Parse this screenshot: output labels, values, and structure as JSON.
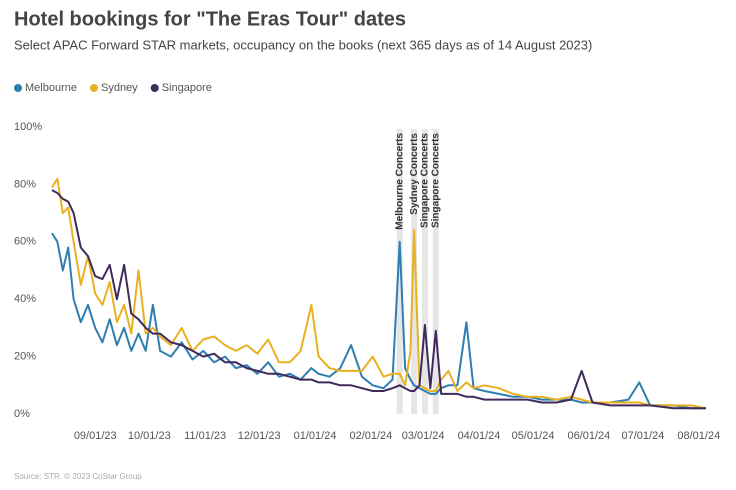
{
  "chart_data": {
    "type": "line",
    "title": "Hotel bookings for \"The Eras Tour\" dates",
    "subtitle": "Select APAC Forward STAR markets, occupancy on the books (next 365 days as of 14 August 2023)",
    "source": "Source: STR. © 2023 CoStar Group",
    "legend": "top-left",
    "grid": false,
    "x": [
      "08/08/23",
      "08/11/23",
      "08/14/23",
      "08/17/23",
      "08/20/23",
      "08/24/23",
      "08/28/23",
      "09/01/23",
      "09/05/23",
      "09/09/23",
      "09/13/23",
      "09/17/23",
      "09/21/23",
      "09/25/23",
      "09/29/23",
      "10/03/23",
      "10/07/23",
      "10/13/23",
      "10/19/23",
      "10/25/23",
      "10/31/23",
      "11/06/23",
      "11/12/23",
      "11/18/23",
      "11/24/23",
      "11/30/23",
      "12/06/23",
      "12/12/23",
      "12/18/23",
      "12/24/23",
      "12/30/23",
      "01/03/24",
      "01/09/24",
      "01/15/24",
      "01/21/24",
      "01/27/24",
      "02/02/24",
      "02/08/24",
      "02/13/24",
      "02/17/24",
      "02/20/24",
      "02/23/24",
      "02/25/24",
      "02/28/24",
      "03/02/24",
      "03/05/24",
      "03/08/24",
      "03/11/24",
      "03/15/24",
      "03/20/24",
      "03/25/24",
      "03/29/24",
      "04/04/24",
      "04/12/24",
      "04/20/24",
      "04/28/24",
      "05/06/24",
      "05/14/24",
      "05/22/24",
      "05/28/24",
      "06/03/24",
      "06/13/24",
      "06/23/24",
      "06/29/24",
      "07/05/24",
      "07/18/24",
      "07/28/24",
      "08/05/24"
    ],
    "series": [
      {
        "name": "Melbourne",
        "color": "#2e7fb0",
        "values": [
          63,
          60,
          50,
          58,
          40,
          32,
          38,
          30,
          25,
          33,
          24,
          30,
          22,
          28,
          22,
          38,
          22,
          20,
          25,
          19,
          22,
          18,
          20,
          16,
          17,
          14,
          18,
          13,
          14,
          12,
          16,
          14,
          13,
          16,
          24,
          13,
          10,
          9,
          12,
          60,
          16,
          12,
          10,
          9,
          8,
          7,
          7,
          9,
          10,
          10,
          32,
          9,
          8,
          7,
          6,
          6,
          5,
          5,
          5,
          4,
          4,
          4,
          5,
          11,
          3,
          3,
          2,
          2
        ]
      },
      {
        "name": "Sydney",
        "color": "#e8b120",
        "values": [
          79,
          82,
          70,
          72,
          60,
          45,
          55,
          42,
          38,
          46,
          32,
          38,
          28,
          50,
          28,
          30,
          27,
          24,
          30,
          22,
          26,
          27,
          24,
          22,
          24,
          21,
          26,
          18,
          18,
          22,
          38,
          20,
          16,
          15,
          15,
          15,
          20,
          13,
          14,
          14,
          10,
          22,
          64,
          10,
          9,
          8,
          8,
          12,
          15,
          8,
          11,
          9,
          10,
          9,
          7,
          6,
          6,
          5,
          6,
          5,
          4,
          4,
          4,
          4,
          3,
          3,
          3,
          2
        ]
      },
      {
        "name": "Singapore",
        "color": "#3f2a5c",
        "values": [
          78,
          77,
          75,
          74,
          70,
          58,
          55,
          48,
          47,
          52,
          40,
          52,
          35,
          33,
          30,
          28,
          28,
          25,
          24,
          22,
          20,
          21,
          18,
          18,
          16,
          15,
          14,
          14,
          13,
          12,
          12,
          11,
          11,
          10,
          10,
          9,
          8,
          8,
          9,
          10,
          9,
          8,
          8,
          10,
          31,
          9,
          29,
          7,
          7,
          7,
          6,
          6,
          5,
          5,
          5,
          5,
          4,
          4,
          5,
          15,
          4,
          3,
          3,
          3,
          3,
          2,
          2,
          2
        ]
      }
    ],
    "xlim": [
      "08/08/23",
      "08/05/24"
    ],
    "xticks": [
      "09/01/23",
      "10/01/23",
      "11/01/23",
      "12/01/23",
      "01/01/24",
      "02/01/24",
      "03/01/24",
      "04/01/24",
      "05/01/24",
      "06/01/24",
      "07/01/24",
      "08/01/24"
    ],
    "ylim": [
      0,
      100
    ],
    "yticks": [
      {
        "value": 0,
        "label": "0%"
      },
      {
        "value": 20,
        "label": "20%"
      },
      {
        "value": 40,
        "label": "40%"
      },
      {
        "value": 60,
        "label": "60%"
      },
      {
        "value": 80,
        "label": "80%"
      },
      {
        "value": 100,
        "label": "100%"
      }
    ],
    "annotations": [
      {
        "label": "Melbourne Concerts",
        "x": "02/17/24"
      },
      {
        "label": "Sydney Concerts",
        "x": "02/25/24"
      },
      {
        "label": "Singapore Concerts",
        "x": "03/02/24"
      },
      {
        "label": "Singapore Concerts",
        "x": "03/08/24"
      }
    ]
  }
}
